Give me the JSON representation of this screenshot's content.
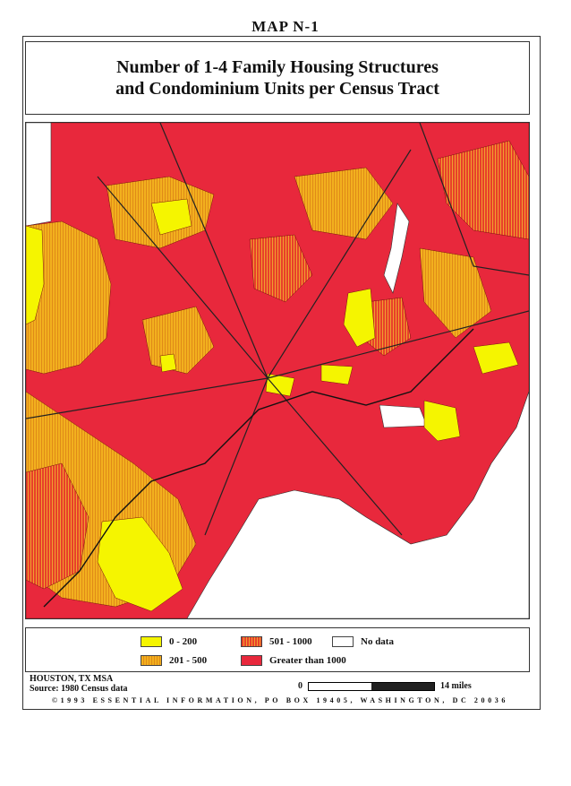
{
  "map_label": "MAP N-1",
  "title": {
    "line1": "Number of 1-4 Family Housing Structures",
    "line2": "and Condominium Units per Census Tract"
  },
  "legend": [
    {
      "label": "0 - 200",
      "color": "#f5f500"
    },
    {
      "label": "501 - 1000",
      "color": "#e8402a"
    },
    {
      "label": "No data",
      "color": "#ffffff"
    },
    {
      "label": "201 - 500",
      "color": "#f2b01e"
    },
    {
      "label": "Greater than 1000",
      "color": "#e8283c"
    }
  ],
  "region": "HOUSTON, TX MSA",
  "source": "Source: 1980 Census data",
  "scale": {
    "start": "0",
    "end": "14 miles"
  },
  "footer": "©1993 ESSENTIAL INFORMATION, PO BOX 19405, WASHINGTON, DC 20036"
}
